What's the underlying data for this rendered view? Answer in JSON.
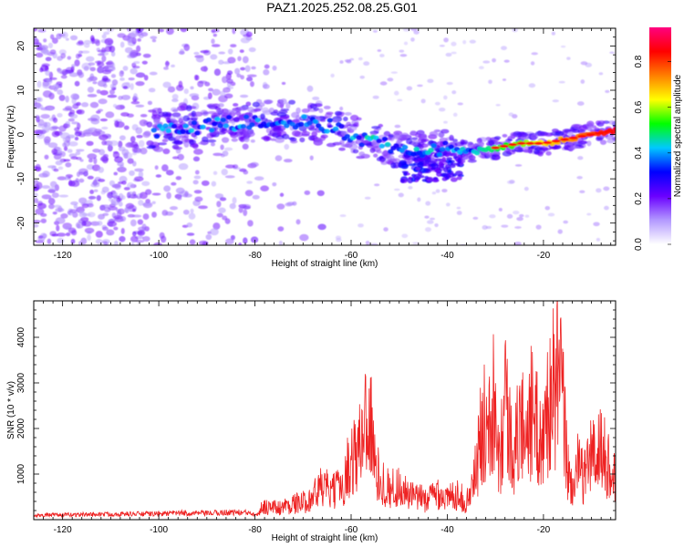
{
  "title": "PAZ1.2025.252.08.25.G01",
  "chart_data": [
    {
      "type": "heatmap",
      "xlabel": "Height of straight line (km)",
      "ylabel": "Frequency (Hz)",
      "xlim": [
        -126,
        -5
      ],
      "ylim": [
        -25,
        24
      ],
      "xticks": [
        -120,
        -100,
        -80,
        -60,
        -40,
        -20
      ],
      "yticks": [
        -20,
        -10,
        0,
        10,
        20
      ],
      "ridge": [
        {
          "x": -100,
          "y": 1
        },
        {
          "x": -90,
          "y": 2
        },
        {
          "x": -80,
          "y": 3
        },
        {
          "x": -70,
          "y": 3
        },
        {
          "x": -65,
          "y": 2
        },
        {
          "x": -60,
          "y": 0
        },
        {
          "x": -55,
          "y": -2
        },
        {
          "x": -50,
          "y": -3
        },
        {
          "x": -45,
          "y": -4
        },
        {
          "x": -40,
          "y": -3
        },
        {
          "x": -35,
          "y": -4
        },
        {
          "x": -30,
          "y": -3
        },
        {
          "x": -25,
          "y": -2
        },
        {
          "x": -20,
          "y": -2
        },
        {
          "x": -15,
          "y": -1
        },
        {
          "x": -10,
          "y": 0
        },
        {
          "x": -5,
          "y": 1
        }
      ],
      "colorbar": {
        "label": "Normalized spectral amplitude",
        "range": [
          0,
          0.95
        ],
        "ticks": [
          "0.0",
          "0.2",
          "0.4",
          "0.6",
          "0.8"
        ],
        "colors": [
          "#ffffff",
          "#b399ff",
          "#6a00ff",
          "#0000ff",
          "#00c8ff",
          "#00ff00",
          "#ffff00",
          "#ff7f00",
          "#ff0000",
          "#ff0080"
        ]
      }
    },
    {
      "type": "line",
      "xlabel": "Height of straight line (km)",
      "ylabel": "SNR (10 * v/v)",
      "xlim": [
        -126,
        -5
      ],
      "ylim": [
        0,
        4800
      ],
      "xticks": [
        -120,
        -100,
        -80,
        -60,
        -40,
        -20
      ],
      "yticks": [
        1000,
        2000,
        3000,
        4000
      ],
      "color": "#ee2222",
      "series": [
        {
          "name": "SNR",
          "x": [
            -126,
            -120,
            -110,
            -100,
            -95,
            -90,
            -85,
            -80,
            -78,
            -75,
            -72,
            -70,
            -68,
            -66,
            -64,
            -62,
            -60,
            -58,
            -57,
            -56,
            -55,
            -54,
            -52,
            -50,
            -48,
            -46,
            -44,
            -42,
            -40,
            -38,
            -36,
            -35,
            -34,
            -33,
            -32,
            -31,
            -30,
            -29,
            -28,
            -27,
            -26,
            -25,
            -24,
            -23,
            -22,
            -21,
            -20,
            -19,
            -18,
            -17,
            -16,
            -15,
            -14,
            -13,
            -12,
            -11,
            -10,
            -9,
            -8,
            -7,
            -6,
            -5
          ],
          "y": [
            120,
            130,
            150,
            160,
            180,
            170,
            200,
            180,
            400,
            350,
            480,
            500,
            700,
            1000,
            800,
            1000,
            1800,
            2200,
            3200,
            3000,
            1500,
            1200,
            900,
            1000,
            700,
            650,
            600,
            850,
            600,
            800,
            500,
            900,
            1500,
            2500,
            3000,
            4000,
            3200,
            2000,
            3800,
            2500,
            1900,
            2900,
            2700,
            3300,
            3000,
            2500,
            2300,
            3500,
            3800,
            4200,
            3500,
            1500,
            900,
            1600,
            1300,
            1500,
            2000,
            1800,
            2200,
            1700,
            1500,
            1200
          ]
        }
      ]
    }
  ]
}
